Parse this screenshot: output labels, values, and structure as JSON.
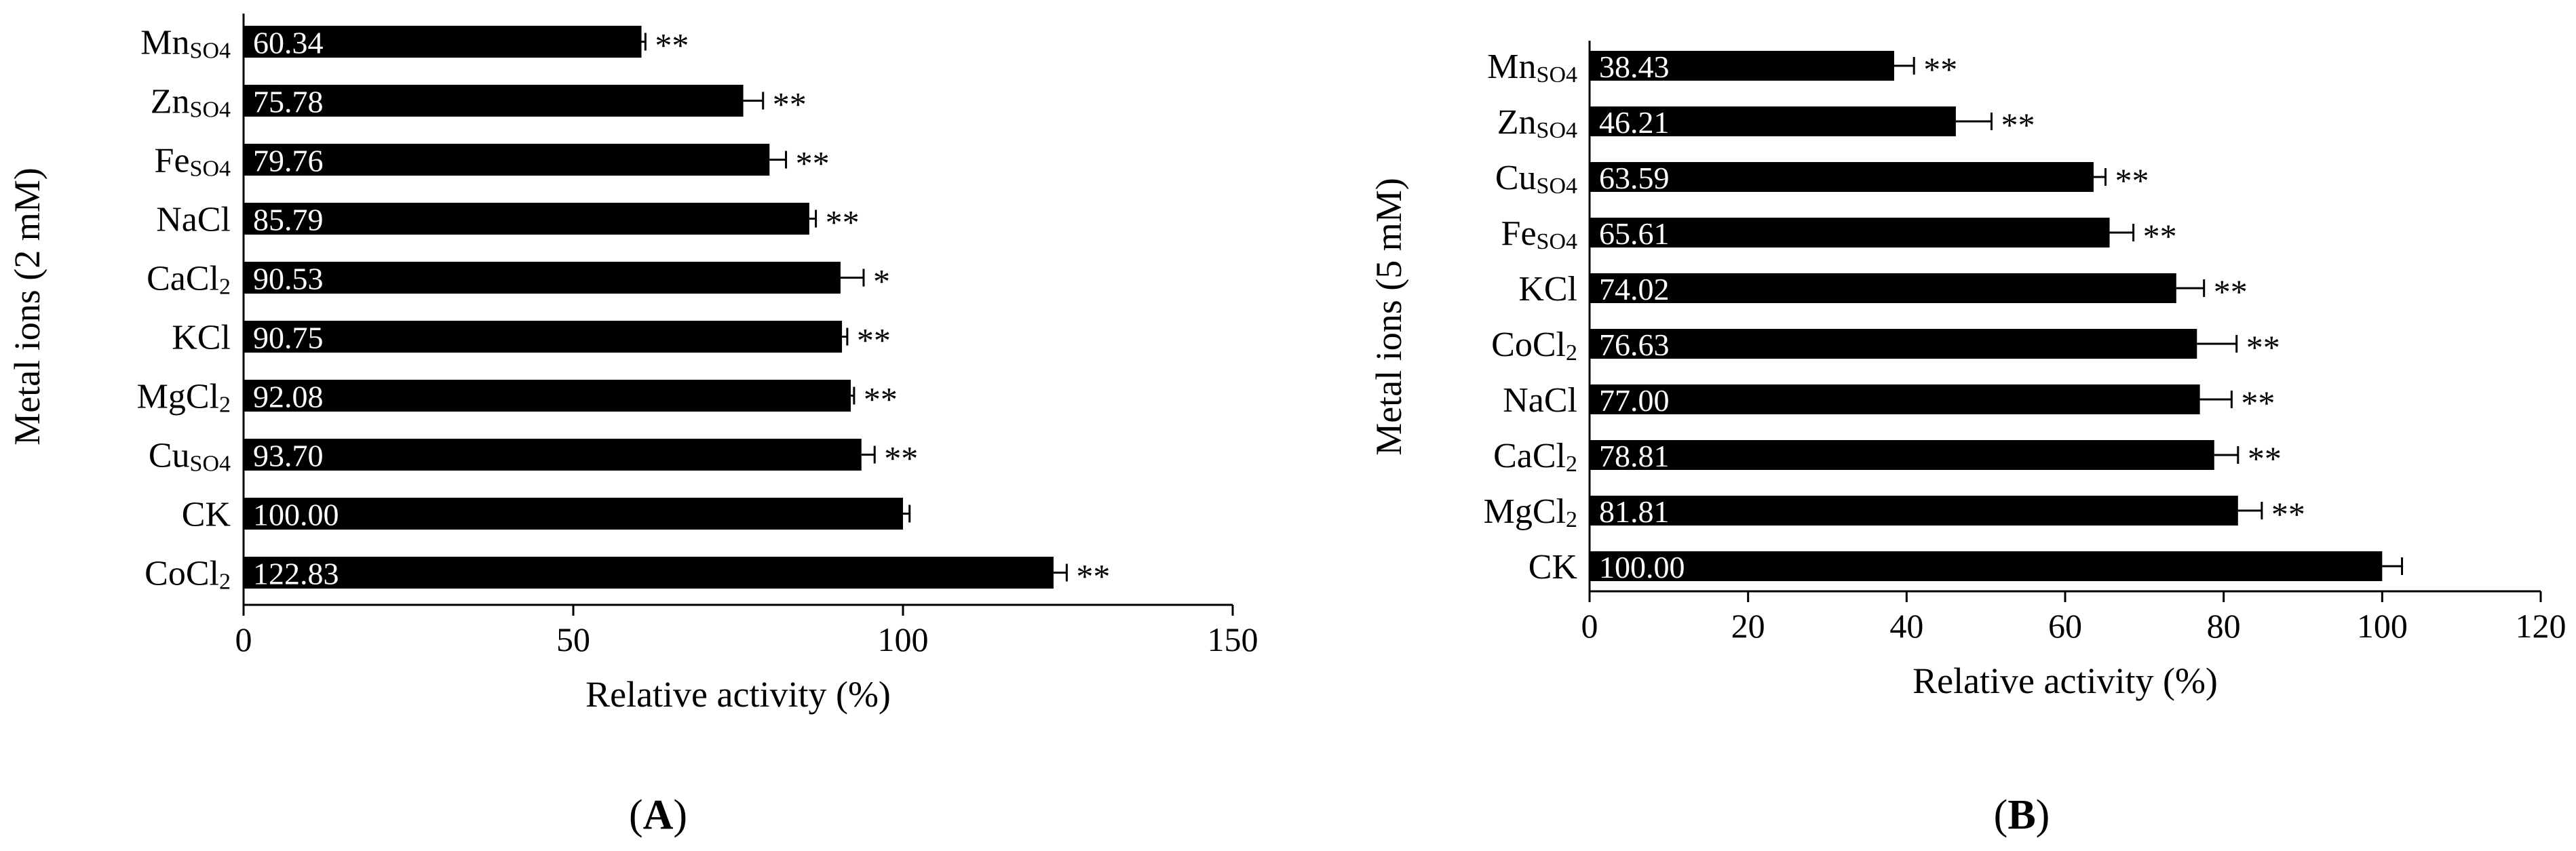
{
  "chart_data": [
    {
      "type": "bar",
      "orientation": "horizontal",
      "panel_label": "(A)",
      "title": "",
      "xlabel": "Relative activity (%)",
      "ylabel": "Metal ions (2 mM)",
      "xlim": [
        0,
        150
      ],
      "xticks": [
        0,
        50,
        100,
        150
      ],
      "categories": [
        {
          "label": "Mn",
          "sub": "SO4"
        },
        {
          "label": "Zn",
          "sub": "SO4"
        },
        {
          "label": "Fe",
          "sub": "SO4"
        },
        {
          "label": "NaCl",
          "sub": ""
        },
        {
          "label": "CaCl",
          "sub": "2"
        },
        {
          "label": "KCl",
          "sub": ""
        },
        {
          "label": "MgCl",
          "sub": "2"
        },
        {
          "label": "Cu",
          "sub": "SO4"
        },
        {
          "label": "CK",
          "sub": ""
        },
        {
          "label": "CoCl",
          "sub": "2"
        }
      ],
      "values": [
        60.34,
        75.78,
        79.76,
        85.79,
        90.53,
        90.75,
        92.08,
        93.7,
        100.0,
        122.83
      ],
      "value_labels": [
        "60.34",
        "75.78",
        "79.76",
        "85.79",
        "90.53",
        "90.75",
        "92.08",
        "93.70",
        "100.00",
        "122.83"
      ],
      "errors": [
        0.6,
        3.0,
        2.5,
        1.0,
        3.5,
        0.8,
        0.5,
        2.0,
        1.0,
        2.0
      ],
      "significance": [
        "**",
        "**",
        "**",
        "**",
        "*",
        "**",
        "**",
        "**",
        "",
        "**"
      ],
      "bar_color": "#000000",
      "grid": false
    },
    {
      "type": "bar",
      "orientation": "horizontal",
      "panel_label": "(B)",
      "title": "",
      "xlabel": "Relative activity (%)",
      "ylabel": "Metal ions (5 mM)",
      "xlim": [
        0,
        120
      ],
      "xticks": [
        0,
        20,
        40,
        60,
        80,
        100,
        120
      ],
      "categories": [
        {
          "label": "Mn",
          "sub": "SO4"
        },
        {
          "label": "Zn",
          "sub": "SO4"
        },
        {
          "label": "Cu",
          "sub": "SO4"
        },
        {
          "label": "Fe",
          "sub": "SO4"
        },
        {
          "label": "KCl",
          "sub": ""
        },
        {
          "label": "CoCl",
          "sub": "2"
        },
        {
          "label": "NaCl",
          "sub": ""
        },
        {
          "label": "CaCl",
          "sub": "2"
        },
        {
          "label": "MgCl",
          "sub": "2"
        },
        {
          "label": "CK",
          "sub": ""
        }
      ],
      "values": [
        38.43,
        46.21,
        63.59,
        65.61,
        74.02,
        76.63,
        77.0,
        78.81,
        81.81,
        100.0
      ],
      "value_labels": [
        "38.43",
        "46.21",
        "63.59",
        "65.61",
        "74.02",
        "76.63",
        "77.00",
        "78.81",
        "81.81",
        "100.00"
      ],
      "errors": [
        2.5,
        4.5,
        1.5,
        3.0,
        3.5,
        5.0,
        4.0,
        3.0,
        3.0,
        2.5
      ],
      "significance": [
        "**",
        "**",
        "**",
        "**",
        "**",
        "**",
        "**",
        "**",
        "**",
        ""
      ],
      "bar_color": "#000000",
      "grid": false
    }
  ]
}
